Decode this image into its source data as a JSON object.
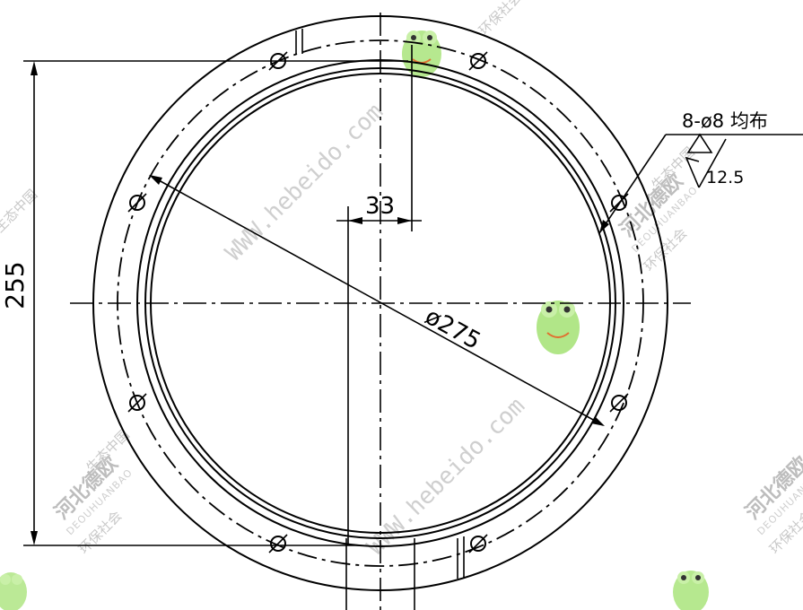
{
  "dimensions": {
    "height_label": "255",
    "offset_label": "33",
    "diameter_label": "ø275",
    "holes_label": "8-ø8 均布",
    "roughness_label": "12.5"
  },
  "watermarks": {
    "url": "WWW.hebeido.com",
    "company_cn": "河北德欧",
    "brand_latin": "DEOUHUANBAO",
    "slogan_1": "环保社会",
    "slogan_2": "生态中国"
  },
  "colors": {
    "line": "#000000",
    "watermark": "#c8c8c8",
    "frog_green": "#7fd34a"
  }
}
